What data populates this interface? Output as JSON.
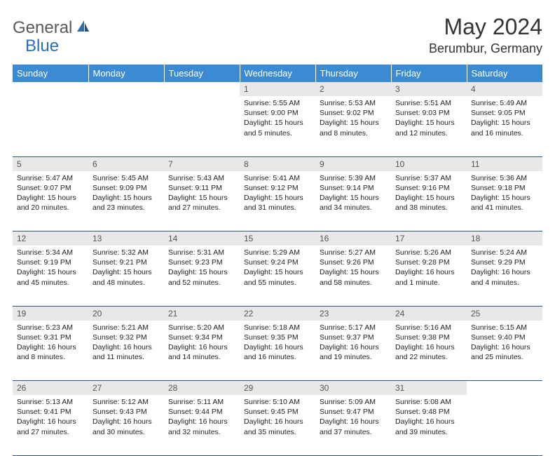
{
  "brand": {
    "part1": "General",
    "part2": "Blue"
  },
  "title": "May 2024",
  "location": "Berumbur, Germany",
  "colors": {
    "header_bg": "#3b8bd4",
    "header_text": "#ffffff",
    "daynum_bg": "#e8e8e8",
    "daynum_text": "#555555",
    "row_border": "#2a5a8a",
    "logo_gray": "#5a5a5a",
    "logo_blue": "#2a6fb5"
  },
  "day_names": [
    "Sunday",
    "Monday",
    "Tuesday",
    "Wednesday",
    "Thursday",
    "Friday",
    "Saturday"
  ],
  "weeks": [
    [
      {
        "n": "",
        "sunrise": "",
        "sunset": "",
        "daylight": ""
      },
      {
        "n": "",
        "sunrise": "",
        "sunset": "",
        "daylight": ""
      },
      {
        "n": "",
        "sunrise": "",
        "sunset": "",
        "daylight": ""
      },
      {
        "n": "1",
        "sunrise": "Sunrise: 5:55 AM",
        "sunset": "Sunset: 9:00 PM",
        "daylight": "Daylight: 15 hours and 5 minutes."
      },
      {
        "n": "2",
        "sunrise": "Sunrise: 5:53 AM",
        "sunset": "Sunset: 9:02 PM",
        "daylight": "Daylight: 15 hours and 8 minutes."
      },
      {
        "n": "3",
        "sunrise": "Sunrise: 5:51 AM",
        "sunset": "Sunset: 9:03 PM",
        "daylight": "Daylight: 15 hours and 12 minutes."
      },
      {
        "n": "4",
        "sunrise": "Sunrise: 5:49 AM",
        "sunset": "Sunset: 9:05 PM",
        "daylight": "Daylight: 15 hours and 16 minutes."
      }
    ],
    [
      {
        "n": "5",
        "sunrise": "Sunrise: 5:47 AM",
        "sunset": "Sunset: 9:07 PM",
        "daylight": "Daylight: 15 hours and 20 minutes."
      },
      {
        "n": "6",
        "sunrise": "Sunrise: 5:45 AM",
        "sunset": "Sunset: 9:09 PM",
        "daylight": "Daylight: 15 hours and 23 minutes."
      },
      {
        "n": "7",
        "sunrise": "Sunrise: 5:43 AM",
        "sunset": "Sunset: 9:11 PM",
        "daylight": "Daylight: 15 hours and 27 minutes."
      },
      {
        "n": "8",
        "sunrise": "Sunrise: 5:41 AM",
        "sunset": "Sunset: 9:12 PM",
        "daylight": "Daylight: 15 hours and 31 minutes."
      },
      {
        "n": "9",
        "sunrise": "Sunrise: 5:39 AM",
        "sunset": "Sunset: 9:14 PM",
        "daylight": "Daylight: 15 hours and 34 minutes."
      },
      {
        "n": "10",
        "sunrise": "Sunrise: 5:37 AM",
        "sunset": "Sunset: 9:16 PM",
        "daylight": "Daylight: 15 hours and 38 minutes."
      },
      {
        "n": "11",
        "sunrise": "Sunrise: 5:36 AM",
        "sunset": "Sunset: 9:18 PM",
        "daylight": "Daylight: 15 hours and 41 minutes."
      }
    ],
    [
      {
        "n": "12",
        "sunrise": "Sunrise: 5:34 AM",
        "sunset": "Sunset: 9:19 PM",
        "daylight": "Daylight: 15 hours and 45 minutes."
      },
      {
        "n": "13",
        "sunrise": "Sunrise: 5:32 AM",
        "sunset": "Sunset: 9:21 PM",
        "daylight": "Daylight: 15 hours and 48 minutes."
      },
      {
        "n": "14",
        "sunrise": "Sunrise: 5:31 AM",
        "sunset": "Sunset: 9:23 PM",
        "daylight": "Daylight: 15 hours and 52 minutes."
      },
      {
        "n": "15",
        "sunrise": "Sunrise: 5:29 AM",
        "sunset": "Sunset: 9:24 PM",
        "daylight": "Daylight: 15 hours and 55 minutes."
      },
      {
        "n": "16",
        "sunrise": "Sunrise: 5:27 AM",
        "sunset": "Sunset: 9:26 PM",
        "daylight": "Daylight: 15 hours and 58 minutes."
      },
      {
        "n": "17",
        "sunrise": "Sunrise: 5:26 AM",
        "sunset": "Sunset: 9:28 PM",
        "daylight": "Daylight: 16 hours and 1 minute."
      },
      {
        "n": "18",
        "sunrise": "Sunrise: 5:24 AM",
        "sunset": "Sunset: 9:29 PM",
        "daylight": "Daylight: 16 hours and 4 minutes."
      }
    ],
    [
      {
        "n": "19",
        "sunrise": "Sunrise: 5:23 AM",
        "sunset": "Sunset: 9:31 PM",
        "daylight": "Daylight: 16 hours and 8 minutes."
      },
      {
        "n": "20",
        "sunrise": "Sunrise: 5:21 AM",
        "sunset": "Sunset: 9:32 PM",
        "daylight": "Daylight: 16 hours and 11 minutes."
      },
      {
        "n": "21",
        "sunrise": "Sunrise: 5:20 AM",
        "sunset": "Sunset: 9:34 PM",
        "daylight": "Daylight: 16 hours and 14 minutes."
      },
      {
        "n": "22",
        "sunrise": "Sunrise: 5:18 AM",
        "sunset": "Sunset: 9:35 PM",
        "daylight": "Daylight: 16 hours and 16 minutes."
      },
      {
        "n": "23",
        "sunrise": "Sunrise: 5:17 AM",
        "sunset": "Sunset: 9:37 PM",
        "daylight": "Daylight: 16 hours and 19 minutes."
      },
      {
        "n": "24",
        "sunrise": "Sunrise: 5:16 AM",
        "sunset": "Sunset: 9:38 PM",
        "daylight": "Daylight: 16 hours and 22 minutes."
      },
      {
        "n": "25",
        "sunrise": "Sunrise: 5:15 AM",
        "sunset": "Sunset: 9:40 PM",
        "daylight": "Daylight: 16 hours and 25 minutes."
      }
    ],
    [
      {
        "n": "26",
        "sunrise": "Sunrise: 5:13 AM",
        "sunset": "Sunset: 9:41 PM",
        "daylight": "Daylight: 16 hours and 27 minutes."
      },
      {
        "n": "27",
        "sunrise": "Sunrise: 5:12 AM",
        "sunset": "Sunset: 9:43 PM",
        "daylight": "Daylight: 16 hours and 30 minutes."
      },
      {
        "n": "28",
        "sunrise": "Sunrise: 5:11 AM",
        "sunset": "Sunset: 9:44 PM",
        "daylight": "Daylight: 16 hours and 32 minutes."
      },
      {
        "n": "29",
        "sunrise": "Sunrise: 5:10 AM",
        "sunset": "Sunset: 9:45 PM",
        "daylight": "Daylight: 16 hours and 35 minutes."
      },
      {
        "n": "30",
        "sunrise": "Sunrise: 5:09 AM",
        "sunset": "Sunset: 9:47 PM",
        "daylight": "Daylight: 16 hours and 37 minutes."
      },
      {
        "n": "31",
        "sunrise": "Sunrise: 5:08 AM",
        "sunset": "Sunset: 9:48 PM",
        "daylight": "Daylight: 16 hours and 39 minutes."
      },
      {
        "n": "",
        "sunrise": "",
        "sunset": "",
        "daylight": ""
      }
    ]
  ]
}
